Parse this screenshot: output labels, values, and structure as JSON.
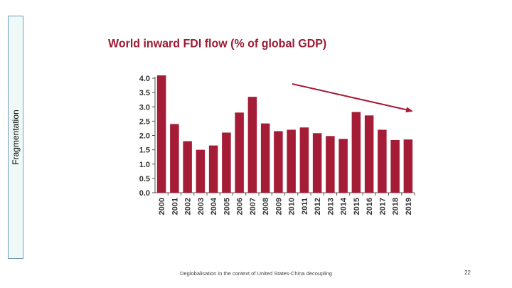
{
  "slide": {
    "side_label": "Fragmentation",
    "footer": "Deglobalisation in the context of United States-China decoupling",
    "page_number": "22"
  },
  "chart_data": {
    "type": "bar",
    "title": "World inward FDI flow (% of global GDP)",
    "xlabel": "",
    "ylabel": "",
    "categories": [
      "2000",
      "2001",
      "2002",
      "2003",
      "2004",
      "2005",
      "2006",
      "2007",
      "2008",
      "2009",
      "2010",
      "2011",
      "2012",
      "2013",
      "2014",
      "2015",
      "2016",
      "2017",
      "2018",
      "2019"
    ],
    "values": [
      4.1,
      2.4,
      1.8,
      1.5,
      1.65,
      2.1,
      2.8,
      3.35,
      2.42,
      2.15,
      2.2,
      2.28,
      2.08,
      1.98,
      1.88,
      2.82,
      2.7,
      2.2,
      1.84,
      1.86
    ],
    "ylim": [
      0,
      4
    ],
    "yticks": [
      "0.0",
      "0.5",
      "1.0",
      "1.5",
      "2.0",
      "2.5",
      "3.0",
      "3.5",
      "4.0"
    ],
    "bar_color": "#a51c36",
    "trend_arrow_color": "#a51c36",
    "grid": false
  }
}
